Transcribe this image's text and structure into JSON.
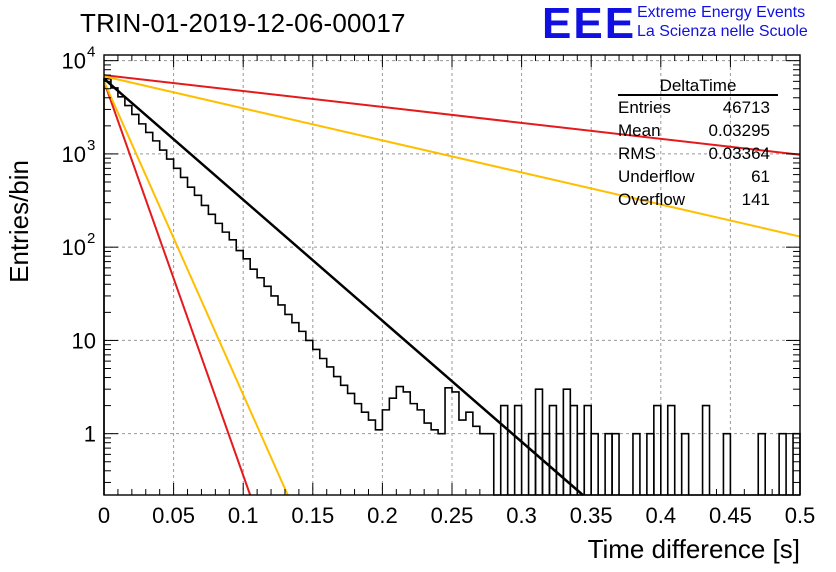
{
  "header": {
    "title": "TRIN-01-2019-12-06-00017",
    "logo_text": "EEE",
    "logo_line1": "Extreme Energy Events",
    "logo_line2": "La Scienza nelle Scuole",
    "logo_color": "#1010e0"
  },
  "stats_box": {
    "name": "DeltaTime",
    "rows": [
      {
        "label": "Entries",
        "value": "46713"
      },
      {
        "label": "Mean",
        "value": "0.03295"
      },
      {
        "label": "RMS",
        "value": "0.03364"
      },
      {
        "label": "Underflow",
        "value": "61"
      },
      {
        "label": "Overflow",
        "value": "141"
      }
    ]
  },
  "chart_data": {
    "type": "line",
    "title": "TRIN-01-2019-12-06-00017",
    "xlabel": "Time difference [s]",
    "ylabel": "Entries/bin",
    "xlim": [
      0,
      0.5
    ],
    "ylim": [
      0.22,
      11500
    ],
    "y_scale": "log",
    "grid": true,
    "x_ticks": [
      "0",
      "0.05",
      "0.1",
      "0.15",
      "0.2",
      "0.25",
      "0.3",
      "0.35",
      "0.4",
      "0.45",
      "0.5"
    ],
    "y_ticks": [
      {
        "value": 1,
        "label": "1"
      },
      {
        "value": 10,
        "label": "10"
      },
      {
        "value": 100,
        "label": "10",
        "exp": "2"
      },
      {
        "value": 1000,
        "label": "10",
        "exp": "3"
      },
      {
        "value": 10000,
        "label": "10",
        "exp": "4"
      }
    ],
    "histogram": {
      "name": "DeltaTime",
      "color": "#000000",
      "bin_width": 0.005,
      "values": [
        6400,
        5100,
        4100,
        3300,
        2650,
        2100,
        1700,
        1380,
        1100,
        880,
        700,
        560,
        440,
        360,
        280,
        225,
        180,
        145,
        120,
        92,
        75,
        58,
        47,
        38,
        30,
        24,
        19,
        15.5,
        12.5,
        10,
        8,
        6.4,
        5.2,
        4.1,
        3.3,
        2.7,
        2.1,
        1.7,
        1.4,
        1.1,
        1.8,
        2.4,
        3.2,
        2.8,
        2.1,
        1.8,
        1.3,
        1.1,
        1,
        3.1,
        2.8,
        1.4,
        1.7,
        1.2,
        1,
        1,
        0.2,
        0.2,
        0.2,
        0.2,
        0.2,
        0.2,
        0.2,
        0.2,
        0.2,
        0.2,
        0.2,
        0.2,
        0.2,
        0.2,
        0.2,
        0.2,
        0.2,
        0.2,
        0.2,
        0.2,
        0.2,
        0.2,
        0.2,
        0.2,
        0.2,
        0.2,
        0.2,
        0.2,
        0.2,
        0.2,
        0.2,
        0.2,
        0.2,
        0.2,
        0.2,
        0.2,
        0.2,
        0.2,
        0.2,
        0.2,
        0.2,
        0.2,
        0.2,
        0.2
      ],
      "sparse_tail": [
        {
          "x0": 0.285,
          "v": 2
        },
        {
          "x0": 0.295,
          "v": 2
        },
        {
          "x0": 0.305,
          "v": 1
        },
        {
          "x0": 0.31,
          "v": 3
        },
        {
          "x0": 0.315,
          "v": 1
        },
        {
          "x0": 0.32,
          "v": 2
        },
        {
          "x0": 0.325,
          "v": 1
        },
        {
          "x0": 0.33,
          "v": 3
        },
        {
          "x0": 0.335,
          "v": 2
        },
        {
          "x0": 0.34,
          "v": 1
        },
        {
          "x0": 0.345,
          "v": 2
        },
        {
          "x0": 0.35,
          "v": 1
        },
        {
          "x0": 0.36,
          "v": 1
        },
        {
          "x0": 0.365,
          "v": 1
        },
        {
          "x0": 0.38,
          "v": 1
        },
        {
          "x0": 0.39,
          "v": 1
        },
        {
          "x0": 0.395,
          "v": 2
        },
        {
          "x0": 0.405,
          "v": 2
        },
        {
          "x0": 0.415,
          "v": 1
        },
        {
          "x0": 0.43,
          "v": 2
        },
        {
          "x0": 0.445,
          "v": 1
        },
        {
          "x0": 0.47,
          "v": 1
        },
        {
          "x0": 0.485,
          "v": 1
        },
        {
          "x0": 0.495,
          "v": 1
        }
      ]
    },
    "series": [
      {
        "color": "#000000",
        "width": 2.5,
        "points": [
          [
            0,
            6400
          ],
          [
            0.344,
            0.22
          ]
        ]
      },
      {
        "color": "#e41a1c",
        "width": 2,
        "points": [
          [
            0,
            6000
          ],
          [
            0.105,
            0.22
          ]
        ]
      },
      {
        "color": "#ffbf00",
        "width": 2,
        "points": [
          [
            0,
            6000
          ],
          [
            0.132,
            0.22
          ]
        ]
      },
      {
        "color": "#e41a1c",
        "width": 2,
        "points": [
          [
            0,
            7000
          ],
          [
            0.5,
            980
          ]
        ]
      },
      {
        "color": "#ffbf00",
        "width": 2,
        "points": [
          [
            0,
            6800
          ],
          [
            0.5,
            130
          ]
        ]
      }
    ]
  }
}
